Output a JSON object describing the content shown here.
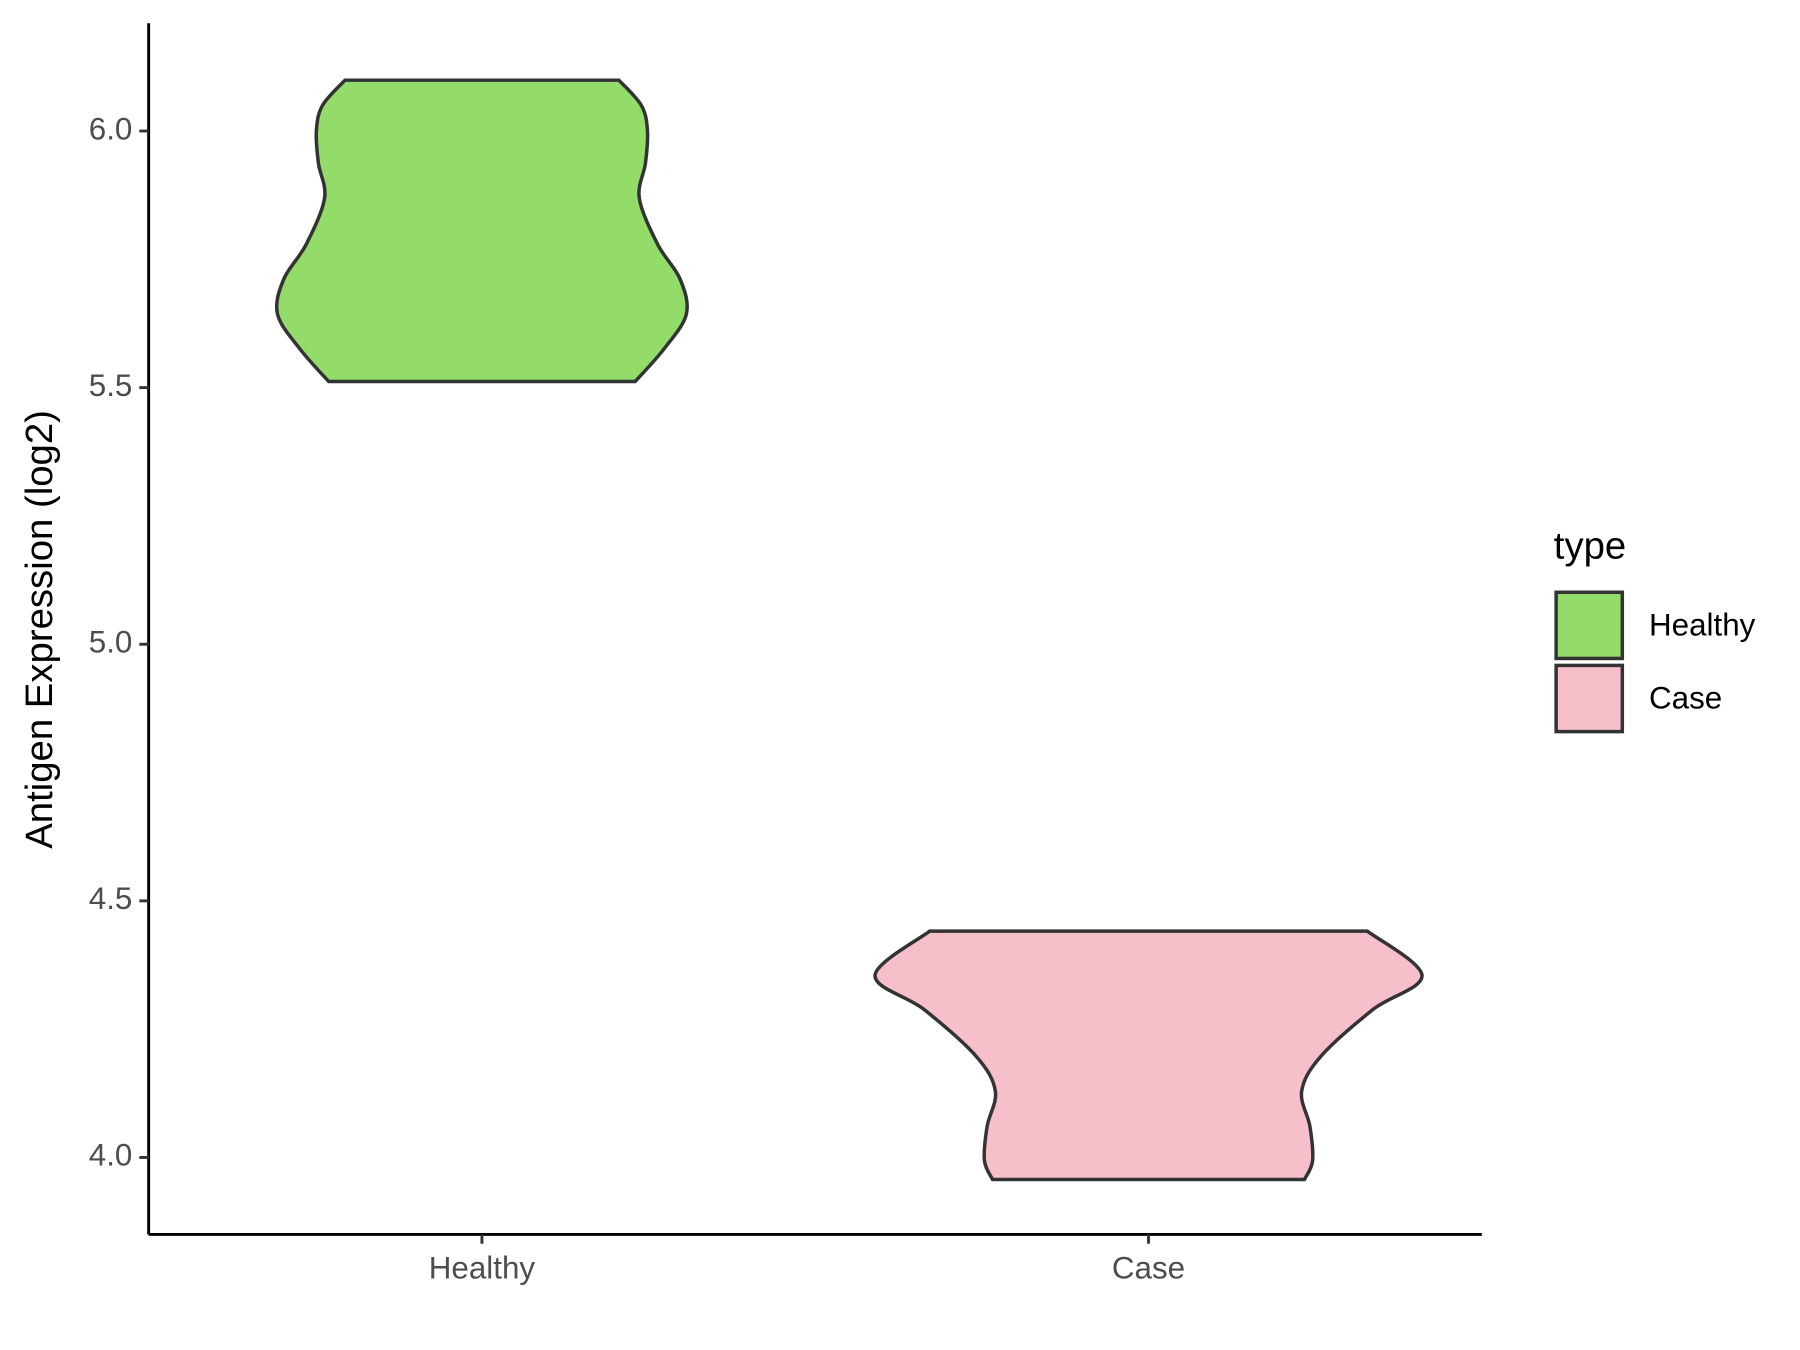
{
  "chart_data": {
    "type": "violin",
    "y_label": "Antigen Expression (log2)",
    "categories": [
      "Healthy",
      "Case"
    ],
    "ylim": [
      3.85,
      6.21
    ],
    "yticks": [
      {
        "value": 4,
        "label": "4.0"
      },
      4.5,
      {
        "value": 5,
        "label": "5.0"
      },
      5.5,
      {
        "value": 6,
        "label": "6.0"
      }
    ],
    "legend_title": "type",
    "legend_position": "right",
    "series": [
      {
        "name": "Healthy",
        "color": "#93dc6a",
        "values": [
          6.099,
          6.05,
          6.0,
          5.937,
          5.869,
          5.779,
          5.711,
          5.643,
          5.575,
          5.512
        ],
        "density": [
          0.67,
          0.78,
          0.81,
          0.8,
          0.77,
          0.86,
          0.97,
          1.0,
          0.89,
          0.75
        ]
      },
      {
        "name": "Case",
        "color": "#f7bfca",
        "values": [
          4.441,
          4.355,
          4.288,
          4.197,
          4.129,
          4.061,
          3.994,
          3.957
        ],
        "density": [
          0.8,
          1.0,
          0.82,
          0.63,
          0.56,
          0.59,
          0.6,
          0.57
        ]
      }
    ]
  }
}
